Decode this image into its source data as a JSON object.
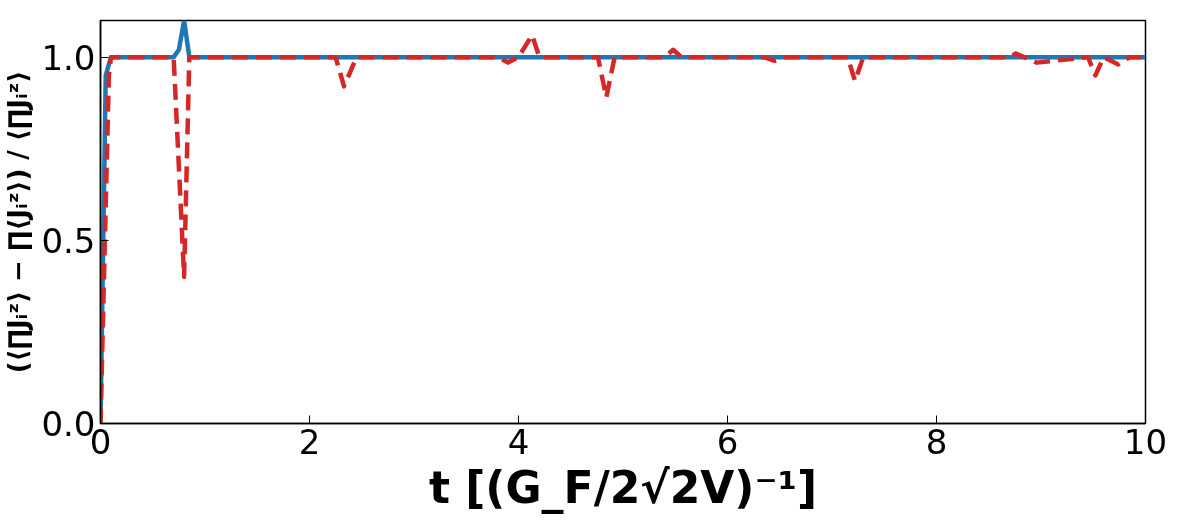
{
  "chart_data": {
    "type": "line",
    "xlabel": "t [(G_F/2√2V)⁻¹]",
    "ylabel": "(⟨∏Jᵢᶻ⟩ − ∏⟨Jᵢᶻ⟩) / ⟨∏Jᵢᶻ⟩",
    "xlim": [
      0,
      10
    ],
    "ylim": [
      0,
      1.1
    ],
    "xticks": [
      0,
      2,
      4,
      6,
      8,
      10
    ],
    "yticks": [
      {
        "value": 0,
        "label": "0.0"
      },
      {
        "value": 0.5,
        "label": "0.5"
      },
      {
        "value": 1,
        "label": "1.0"
      }
    ],
    "grid": false,
    "series": [
      {
        "color": "#1f77b4",
        "line_style": "solid",
        "x": [
          0,
          0.05,
          0.1,
          0.7,
          0.75,
          0.8,
          0.85,
          10
        ],
        "values": [
          0,
          0.95,
          1.0,
          1.0,
          1.02,
          1.1,
          1.0,
          1.0
        ]
      },
      {
        "color": "#d62728",
        "line_style": "dashed",
        "x": [
          0,
          0.08,
          0.1,
          0.7,
          0.8,
          0.85,
          2.25,
          2.33,
          2.45,
          3.8,
          3.9,
          4.0,
          4.13,
          4.2,
          4.7,
          4.76,
          4.84,
          4.92,
          5.4,
          5.48,
          5.56,
          6.35,
          6.45,
          6.55,
          7.15,
          7.22,
          7.3,
          8.7,
          8.76,
          8.96,
          9.45,
          9.52,
          9.6,
          9.74,
          9.85,
          10
        ],
        "values": [
          0,
          0.95,
          1.0,
          1.0,
          0.4,
          1.0,
          1.0,
          0.92,
          1.0,
          1.0,
          0.985,
          1.0,
          1.06,
          1.0,
          1.0,
          1.0,
          0.89,
          1.0,
          1.0,
          1.02,
          1.0,
          1.0,
          0.99,
          1.0,
          1.0,
          0.935,
          1.0,
          1.0,
          1.01,
          0.985,
          1.0,
          0.95,
          1.0,
          0.98,
          1.0,
          1.0
        ]
      }
    ]
  }
}
